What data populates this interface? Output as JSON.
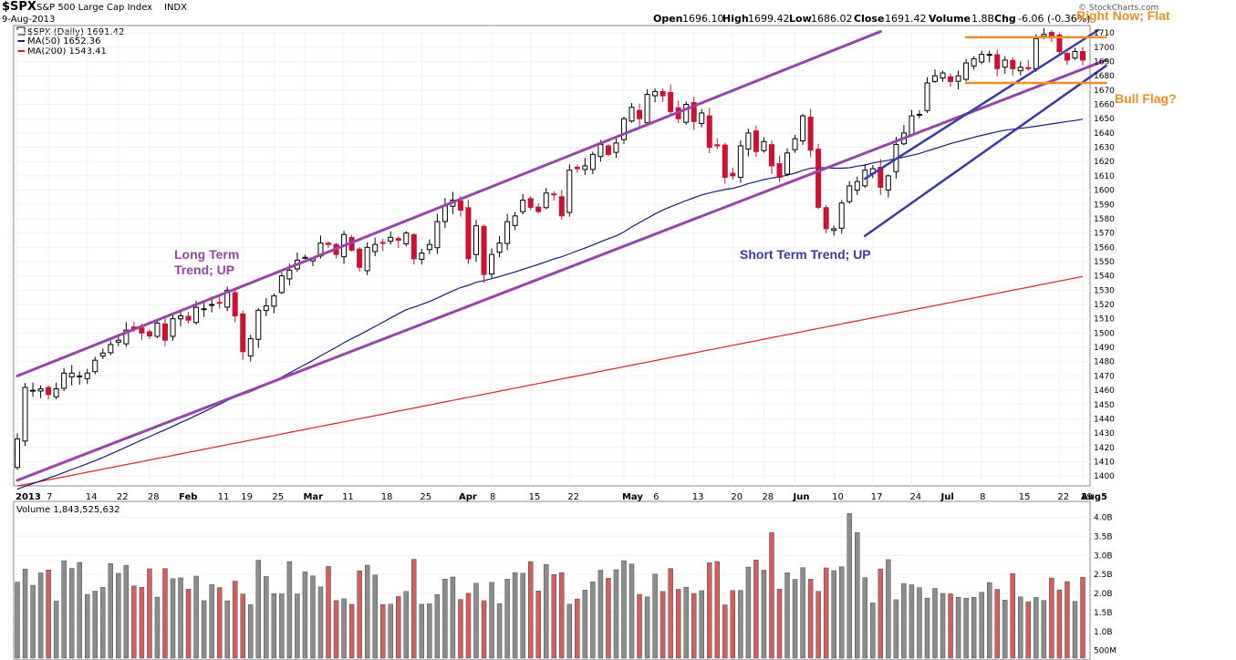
{
  "header": {
    "symbol": "$SPX",
    "name": "S&P 500 Large Cap Index",
    "exchange": "INDX",
    "date": "9-Aug-2013",
    "watermark": "© StockCharts.com",
    "open_label": "Open",
    "open": "1696.10",
    "high_label": "High",
    "high": "1699.42",
    "low_label": "Low",
    "low": "1686.02",
    "close_label": "Close",
    "close": "1691.42",
    "volume_label": "Volume",
    "volume": "1.8B",
    "chg_label": "Chg",
    "chg": "-6.06 (-0.36%)"
  },
  "legend": {
    "price": "$SPX (Daily) 1691.42",
    "ma50": "MA(50) 1652.36",
    "ma200": "MA(200) 1543.41",
    "volume": "Volume 1,843,525,632"
  },
  "annotations": {
    "long_term": [
      "Long Term",
      "Trend; UP"
    ],
    "short_term": "Short Term Trend; UP",
    "right_now": "Right Now; Flat",
    "bull_flag": "Bull Flag?"
  },
  "colors": {
    "up": "#000000",
    "down": "#cc1133",
    "ma50": "#1a1a80",
    "ma200": "#dd2222",
    "long_channel": "#9944aa",
    "short_channel": "#3a3aa8",
    "flag": "#f08c2a",
    "vol_up": "#8c8c8c",
    "vol_down": "#d06060"
  },
  "chart_data": {
    "type": "candlestick",
    "title": "$SPX S&P 500 Large Cap Index INDX",
    "x_labels": [
      "2013",
      "7",
      "14",
      "22",
      "28",
      "Feb",
      "11",
      "19",
      "25",
      "Mar",
      "11",
      "18",
      "25",
      "Apr",
      "8",
      "15",
      "22",
      "May",
      "6",
      "13",
      "20",
      "28",
      "Jun",
      "10",
      "17",
      "24",
      "Jul",
      "8",
      "15",
      "22",
      "29",
      "Aug5"
    ],
    "ylim": [
      1395,
      1712
    ],
    "y_ticks": [
      1400,
      1410,
      1420,
      1430,
      1440,
      1450,
      1460,
      1470,
      1480,
      1490,
      1500,
      1510,
      1520,
      1530,
      1540,
      1550,
      1560,
      1570,
      1580,
      1590,
      1600,
      1610,
      1620,
      1630,
      1640,
      1650,
      1660,
      1670,
      1680,
      1690,
      1700,
      1710
    ],
    "close": [
      1426,
      1462,
      1460,
      1461,
      1457,
      1461,
      1472,
      1472,
      1470,
      1472,
      1481,
      1486,
      1492,
      1495,
      1502,
      1503,
      1500,
      1498,
      1507,
      1495,
      1510,
      1512,
      1509,
      1518,
      1517,
      1520,
      1521,
      1530,
      1512,
      1487,
      1496,
      1516,
      1519,
      1526,
      1540,
      1544,
      1551,
      1553,
      1552,
      1563,
      1562,
      1555,
      1569,
      1558,
      1546,
      1560,
      1562,
      1563,
      1567,
      1565,
      1570,
      1552,
      1556,
      1562,
      1578,
      1589,
      1593,
      1586,
      1552,
      1575,
      1541,
      1555,
      1563,
      1578,
      1582,
      1593,
      1588,
      1585,
      1598,
      1597,
      1582,
      1614,
      1615,
      1617,
      1625,
      1632,
      1625,
      1633,
      1650,
      1658,
      1650,
      1667,
      1669,
      1666,
      1655,
      1650,
      1660,
      1648,
      1654,
      1630,
      1631,
      1609,
      1610,
      1631,
      1640,
      1627,
      1634,
      1617,
      1609,
      1626,
      1636,
      1652,
      1628,
      1588,
      1573,
      1573,
      1591,
      1603,
      1606,
      1614,
      1615,
      1602,
      1610,
      1632,
      1640,
      1652,
      1653,
      1675,
      1680,
      1682,
      1676,
      1680,
      1689,
      1692,
      1695,
      1695,
      1685,
      1691,
      1685,
      1686,
      1685,
      1706,
      1709,
      1707,
      1697,
      1691,
      1697,
      1691
    ],
    "volume_label": "Volume",
    "volume_ticks": [
      "500M",
      "1.0B",
      "1.5B",
      "2.0B",
      "2.5B",
      "3.0B",
      "3.5B",
      "4.0B"
    ],
    "volume_ylim_billions": [
      0.3,
      4.3
    ],
    "series": [
      {
        "name": "$SPX (Daily)",
        "role": "price"
      },
      {
        "name": "MA(50)",
        "role": "ma50"
      },
      {
        "name": "MA(200)",
        "role": "ma200"
      },
      {
        "name": "Volume",
        "role": "volume"
      }
    ],
    "trendlines": [
      {
        "name": "Long Term Trend; UP (upper)",
        "from": [
          0,
          1470
        ],
        "to": [
          111,
          1711
        ]
      },
      {
        "name": "Long Term Trend; UP (lower)",
        "from": [
          0,
          1397
        ],
        "to": [
          140,
          1691
        ]
      },
      {
        "name": "Short Term Trend; UP (upper)",
        "from": [
          109,
          1608
        ],
        "to": [
          139,
          1712
        ]
      },
      {
        "name": "Short Term Trend; UP (lower)",
        "from": [
          109,
          1568
        ],
        "to": [
          140,
          1687
        ]
      },
      {
        "name": "Flag top",
        "from": [
          122,
          1707
        ],
        "to": [
          140,
          1707
        ]
      },
      {
        "name": "Flag bottom",
        "from": [
          122,
          1675
        ],
        "to": [
          140,
          1675
        ]
      }
    ]
  }
}
